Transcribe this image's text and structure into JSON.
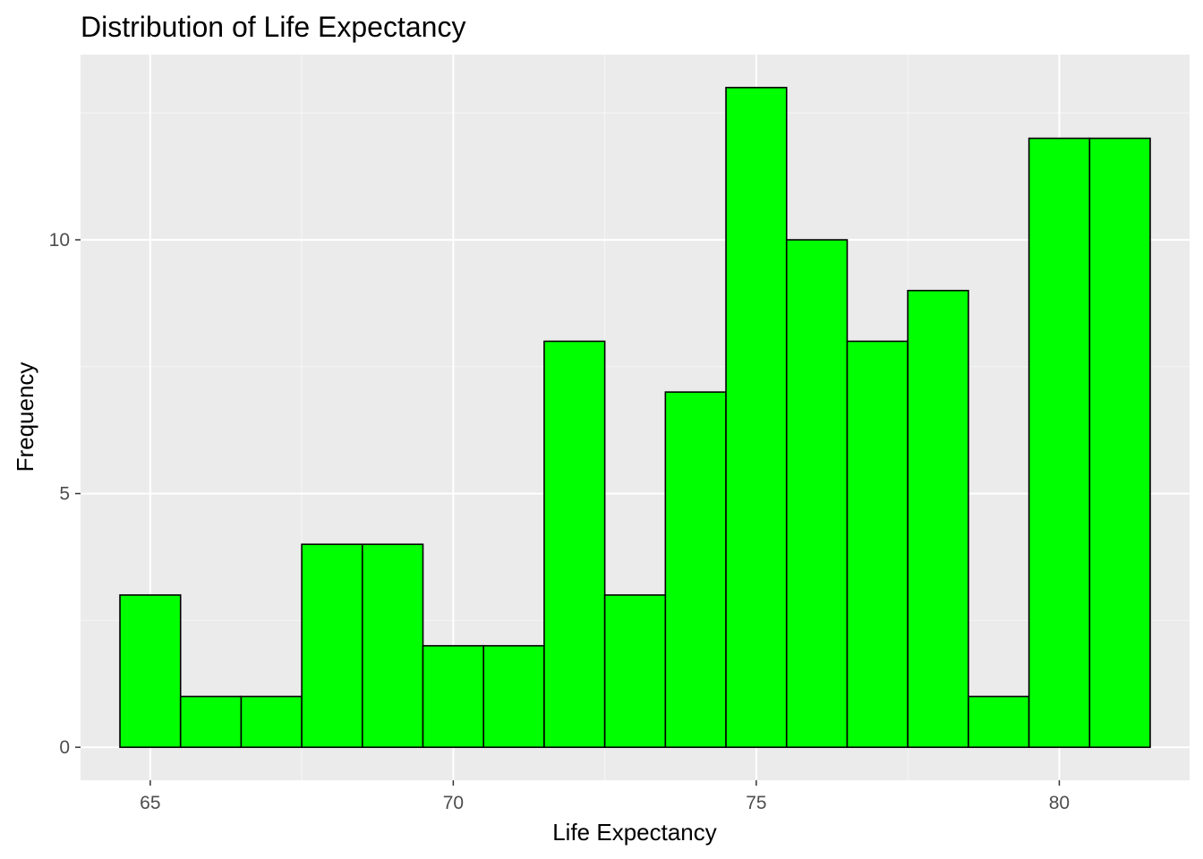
{
  "chart_data": {
    "type": "bar",
    "title": "Distribution of Life Expectancy",
    "xlabel": "Life Expectancy",
    "ylabel": "Frequency",
    "bin_width": 1,
    "bins": [
      {
        "x0": 64.5,
        "x1": 65.5,
        "count": 3
      },
      {
        "x0": 65.5,
        "x1": 66.5,
        "count": 1
      },
      {
        "x0": 66.5,
        "x1": 67.5,
        "count": 1
      },
      {
        "x0": 67.5,
        "x1": 68.5,
        "count": 4
      },
      {
        "x0": 68.5,
        "x1": 69.5,
        "count": 4
      },
      {
        "x0": 69.5,
        "x1": 70.5,
        "count": 2
      },
      {
        "x0": 70.5,
        "x1": 71.5,
        "count": 2
      },
      {
        "x0": 71.5,
        "x1": 72.5,
        "count": 8
      },
      {
        "x0": 72.5,
        "x1": 73.5,
        "count": 3
      },
      {
        "x0": 73.5,
        "x1": 74.5,
        "count": 7
      },
      {
        "x0": 74.5,
        "x1": 75.5,
        "count": 13
      },
      {
        "x0": 75.5,
        "x1": 76.5,
        "count": 10
      },
      {
        "x0": 76.5,
        "x1": 77.5,
        "count": 8
      },
      {
        "x0": 77.5,
        "x1": 78.5,
        "count": 9
      },
      {
        "x0": 78.5,
        "x1": 79.5,
        "count": 1
      },
      {
        "x0": 79.5,
        "x1": 80.5,
        "count": 12
      },
      {
        "x0": 80.5,
        "x1": 81.5,
        "count": 12
      }
    ],
    "x_ticks": [
      65,
      70,
      75,
      80
    ],
    "y_ticks": [
      0,
      5,
      10
    ],
    "xlim": [
      63.85,
      82.15
    ],
    "ylim": [
      -0.65,
      13.65
    ],
    "grid": true,
    "colors": {
      "bar_fill": "#00ff00",
      "bar_outline": "#000000",
      "panel_background": "#ebebeb",
      "grid": "#ffffff"
    }
  }
}
